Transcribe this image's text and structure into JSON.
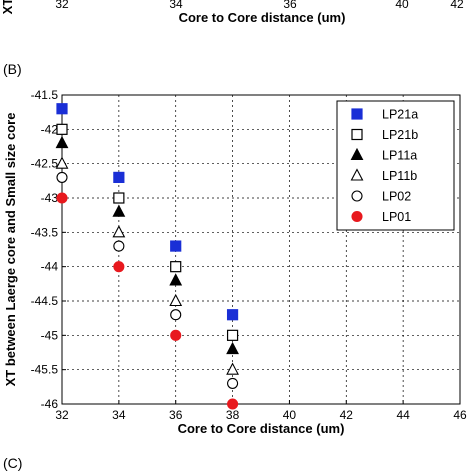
{
  "top_fragment": {
    "ylabel_letters": "XT",
    "tick_labels": [
      "32",
      "34",
      "36",
      "40",
      "42"
    ],
    "xlabel": "Core to Core distance (um)"
  },
  "panel_b_label": "(B)",
  "panel_c_label": "(C)",
  "chart_data": {
    "type": "scatter",
    "xlabel": "Core to Core distance (um)",
    "ylabel": "XT between Laerge core and Small size core",
    "xlim": [
      32,
      46
    ],
    "ylim": [
      -46,
      -41.5
    ],
    "x_ticks": [
      "32",
      "34",
      "36",
      "38",
      "40",
      "42",
      "44",
      "46"
    ],
    "y_ticks": [
      "-41.5",
      "-42",
      "-42.5",
      "-43",
      "-43.5",
      "-44",
      "-44.5",
      "-45",
      "-45.5",
      "-46"
    ],
    "grid": true,
    "legend_position": "top-right",
    "series": [
      {
        "name": "LP21a",
        "marker": "filled-square",
        "color": "#1a2fd6",
        "x": [
          32,
          34,
          36,
          38
        ],
        "y": [
          -41.7,
          -42.7,
          -43.7,
          -44.7
        ]
      },
      {
        "name": "LP21b",
        "marker": "open-square",
        "color": "#000000",
        "x": [
          32,
          34,
          36,
          38
        ],
        "y": [
          -42.0,
          -43.0,
          -44.0,
          -45.0
        ]
      },
      {
        "name": "LP11a",
        "marker": "filled-triangle",
        "color": "#000000",
        "x": [
          32,
          34,
          36,
          38
        ],
        "y": [
          -42.2,
          -43.2,
          -44.2,
          -45.2
        ]
      },
      {
        "name": "LP11b",
        "marker": "open-triangle",
        "color": "#000000",
        "x": [
          32,
          34,
          36,
          38
        ],
        "y": [
          -42.5,
          -43.5,
          -44.5,
          -45.5
        ]
      },
      {
        "name": "LP02",
        "marker": "open-circle",
        "color": "#000000",
        "x": [
          32,
          34,
          36,
          38
        ],
        "y": [
          -42.7,
          -43.7,
          -44.7,
          -45.7
        ]
      },
      {
        "name": "LP01",
        "marker": "filled-circle",
        "color": "#e8191e",
        "x": [
          32,
          34,
          36,
          38
        ],
        "y": [
          -43.0,
          -44.0,
          -45.0,
          -46.0
        ]
      }
    ]
  }
}
